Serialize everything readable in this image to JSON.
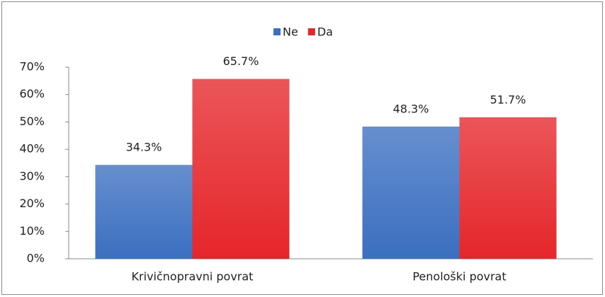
{
  "chart_data": {
    "type": "bar",
    "categories": [
      "Krivičnopravni povrat",
      "Penološki povrat"
    ],
    "series": [
      {
        "name": "Ne",
        "color": "#3b6fc0",
        "values": [
          34.3,
          48.3
        ],
        "value_labels": [
          "34.3%",
          "48.3%"
        ]
      },
      {
        "name": "Da",
        "color": "#e5262a",
        "values": [
          65.7,
          51.7
        ],
        "value_labels": [
          "65.7%",
          "51.7%"
        ]
      }
    ],
    "ylim": [
      0,
      70
    ],
    "yticks": [
      {
        "value": 0,
        "label": "0%"
      },
      {
        "value": 10,
        "label": "10%"
      },
      {
        "value": 20,
        "label": "20%"
      },
      {
        "value": 30,
        "label": "30%"
      },
      {
        "value": 40,
        "label": "40%"
      },
      {
        "value": 50,
        "label": "50%"
      },
      {
        "value": 60,
        "label": "60%"
      },
      {
        "value": 70,
        "label": "70%"
      }
    ],
    "grid": false,
    "legend": "top"
  }
}
